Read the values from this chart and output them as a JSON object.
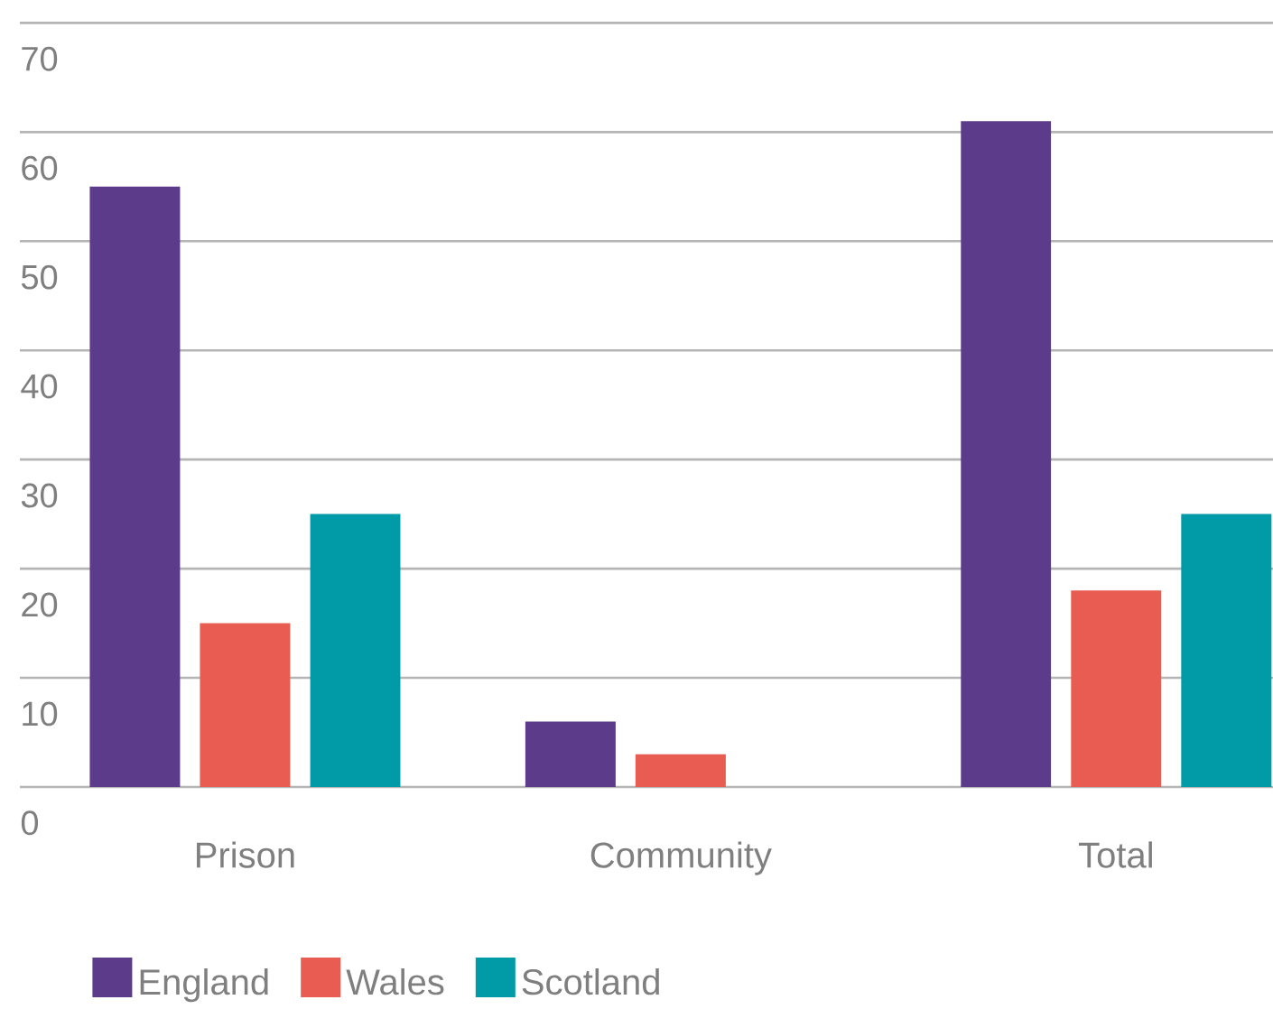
{
  "chart_data": {
    "type": "bar",
    "categories": [
      "Prison",
      "Community",
      "Total"
    ],
    "series": [
      {
        "name": "England",
        "color": "#5b3b8a",
        "values": [
          55,
          6,
          61
        ]
      },
      {
        "name": "Wales",
        "color": "#e95c52",
        "values": [
          15,
          3,
          18
        ]
      },
      {
        "name": "Scotland",
        "color": "#009ba6",
        "values": [
          25,
          null,
          25
        ]
      }
    ],
    "ylim": [
      0,
      70
    ],
    "yticks": [
      0,
      10,
      20,
      30,
      40,
      50,
      60,
      70
    ],
    "grid": "y",
    "legend": "bottom left"
  }
}
